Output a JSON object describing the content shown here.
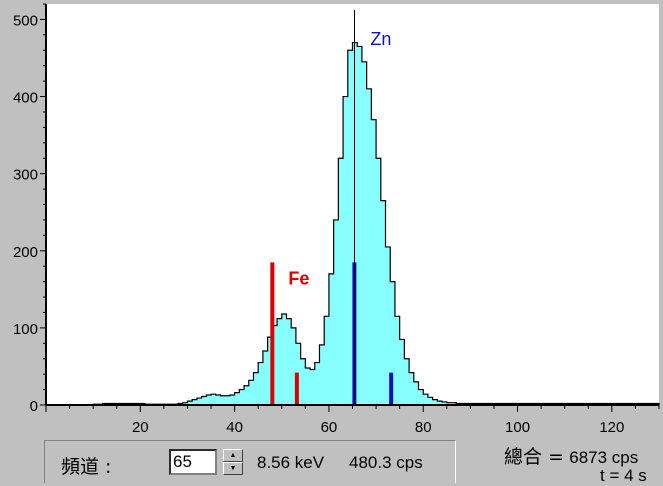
{
  "chart_data": {
    "type": "bar",
    "xlim": [
      0,
      130
    ],
    "ylim": [
      0,
      520
    ],
    "x_ticks": [
      20,
      40,
      60,
      80,
      100,
      120
    ],
    "y_ticks": [
      0,
      100,
      200,
      300,
      400,
      500
    ],
    "cursor_channel": 65,
    "histogram": {
      "x_start": 10,
      "values": [
        1,
        1,
        2,
        2,
        2,
        2,
        2,
        2,
        2,
        2,
        2,
        1,
        1,
        1,
        1,
        1,
        1,
        1,
        2,
        3,
        5,
        7,
        9,
        11,
        13,
        14,
        13,
        12,
        12,
        13,
        16,
        20,
        25,
        32,
        42,
        55,
        70,
        88,
        103,
        112,
        118,
        112,
        100,
        80,
        60,
        48,
        46,
        55,
        78,
        115,
        170,
        240,
        320,
        400,
        460,
        470,
        465,
        445,
        410,
        370,
        320,
        265,
        205,
        160,
        115,
        85,
        60,
        42,
        30,
        20,
        14,
        10,
        7,
        5,
        4,
        3,
        3,
        2,
        2,
        2,
        2,
        2,
        2,
        2,
        2,
        2,
        2,
        2,
        2,
        2,
        2,
        2,
        2,
        2,
        2,
        2,
        2,
        2,
        2,
        2,
        2,
        2,
        2,
        2,
        2,
        2,
        2,
        2,
        2,
        2,
        2,
        2,
        2,
        2,
        2,
        2,
        2,
        2,
        2,
        2
      ]
    },
    "element_markers": [
      {
        "element": "Fe",
        "color": "#dd0000",
        "lines": [
          {
            "x": 48,
            "height": 185
          },
          {
            "x": 53.2,
            "height": 42
          }
        ]
      },
      {
        "element": "Zn",
        "color": "#1010c0",
        "lines": [
          {
            "x": 65.4,
            "height": 185
          },
          {
            "x": 73.2,
            "height": 42
          }
        ]
      }
    ],
    "colors": {
      "fill": "#88ffff",
      "outline": "#000000",
      "plot_background": "#ffffff"
    }
  },
  "status": {
    "channel_label": "頻道 :",
    "channel_value": "65",
    "energy": "8.56 keV",
    "rate": "480.3 cps",
    "total_label": "總合 =",
    "total_value": "6873 cps",
    "time": "t = 4 s",
    "spin_up": "▲",
    "spin_down": "▼"
  }
}
